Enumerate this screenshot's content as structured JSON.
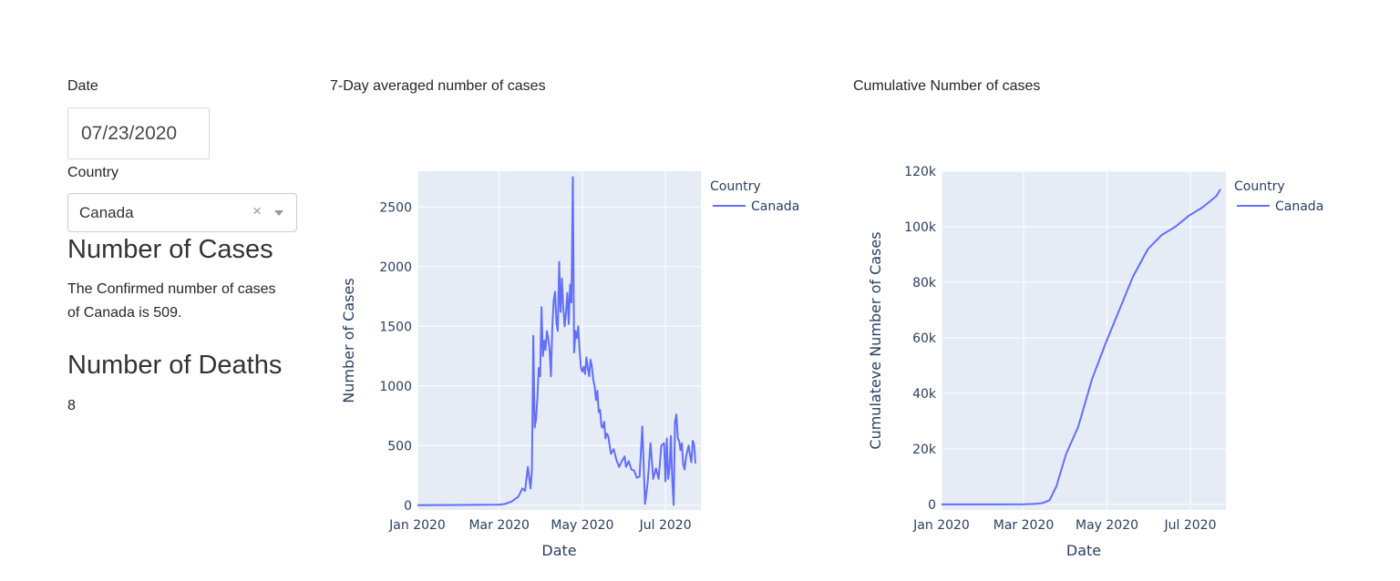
{
  "controls": {
    "date_label": "Date",
    "date_value": "07/23/2020",
    "country_label": "Country",
    "country_value": "Canada",
    "clear_glyph": "×"
  },
  "summary": {
    "cases_heading": "Number of Cases",
    "cases_text_line1": "The Confirmed number of cases",
    "cases_text_line2": "of Canada is 509.",
    "deaths_heading": "Number of Deaths",
    "deaths_value": "8"
  },
  "chart_titles": {
    "daily": "7-Day averaged number of cases",
    "cumulative": "Cumulative Number of cases"
  },
  "colors": {
    "line": "#636efa",
    "plot_bg": "#e5ecf6",
    "grid": "#ffffff",
    "text": "#2a3f5f"
  },
  "chart_data": [
    {
      "id": "daily",
      "type": "line",
      "xlabel": "Date",
      "ylabel": "Number of Cases",
      "x_tick_labels": [
        "Jan 2020",
        "Mar 2020",
        "May 2020",
        "Jul 2020"
      ],
      "y_tick_labels": [
        "0",
        "500",
        "1000",
        "1500",
        "2000",
        "2500"
      ],
      "ylim": [
        -40,
        2800
      ],
      "x_range": [
        "2020-01-01",
        "2020-07-27"
      ],
      "legend_title": "Country",
      "legend_position": "top-right",
      "series": [
        {
          "name": "Canada",
          "x": [
            "2020-01-01",
            "2020-02-01",
            "2020-03-01",
            "2020-03-05",
            "2020-03-10",
            "2020-03-15",
            "2020-03-18",
            "2020-03-20",
            "2020-03-22",
            "2020-03-24",
            "2020-03-25",
            "2020-03-26",
            "2020-03-27",
            "2020-03-28",
            "2020-03-29",
            "2020-03-30",
            "2020-03-31",
            "2020-04-01",
            "2020-04-02",
            "2020-04-03",
            "2020-04-04",
            "2020-04-05",
            "2020-04-06",
            "2020-04-07",
            "2020-04-08",
            "2020-04-09",
            "2020-04-10",
            "2020-04-11",
            "2020-04-12",
            "2020-04-13",
            "2020-04-14",
            "2020-04-15",
            "2020-04-16",
            "2020-04-17",
            "2020-04-18",
            "2020-04-19",
            "2020-04-20",
            "2020-04-21",
            "2020-04-22",
            "2020-04-23",
            "2020-04-24",
            "2020-04-25",
            "2020-04-26",
            "2020-04-27",
            "2020-04-28",
            "2020-04-29",
            "2020-04-30",
            "2020-05-01",
            "2020-05-02",
            "2020-05-03",
            "2020-05-04",
            "2020-05-05",
            "2020-05-06",
            "2020-05-07",
            "2020-05-08",
            "2020-05-09",
            "2020-05-10",
            "2020-05-11",
            "2020-05-12",
            "2020-05-13",
            "2020-05-14",
            "2020-05-15",
            "2020-05-16",
            "2020-05-17",
            "2020-05-18",
            "2020-05-19",
            "2020-05-20",
            "2020-05-22",
            "2020-05-24",
            "2020-05-26",
            "2020-05-28",
            "2020-05-30",
            "2020-06-01",
            "2020-06-02",
            "2020-06-04",
            "2020-06-06",
            "2020-06-08",
            "2020-06-10",
            "2020-06-12",
            "2020-06-14",
            "2020-06-16",
            "2020-06-18",
            "2020-06-20",
            "2020-06-22",
            "2020-06-24",
            "2020-06-26",
            "2020-06-28",
            "2020-06-30",
            "2020-07-01",
            "2020-07-02",
            "2020-07-03",
            "2020-07-04",
            "2020-07-05",
            "2020-07-06",
            "2020-07-07",
            "2020-07-08",
            "2020-07-09",
            "2020-07-10",
            "2020-07-11",
            "2020-07-12",
            "2020-07-13",
            "2020-07-14",
            "2020-07-15",
            "2020-07-16",
            "2020-07-17",
            "2020-07-18",
            "2020-07-19",
            "2020-07-20",
            "2020-07-21",
            "2020-07-22",
            "2020-07-23"
          ],
          "y": [
            0,
            2,
            5,
            10,
            30,
            70,
            140,
            120,
            320,
            140,
            300,
            1420,
            650,
            720,
            900,
            1150,
            1080,
            1660,
            1250,
            1380,
            1300,
            1460,
            1400,
            1300,
            1080,
            1500,
            1720,
            1790,
            1530,
            1460,
            2040,
            1620,
            1900,
            1650,
            1500,
            1620,
            1780,
            1520,
            1850,
            1700,
            2750,
            1280,
            1460,
            1400,
            1500,
            1300,
            1150,
            1120,
            1160,
            1100,
            1240,
            1150,
            1080,
            1220,
            1160,
            1050,
            1000,
            880,
            960,
            780,
            800,
            660,
            650,
            700,
            560,
            600,
            580,
            430,
            470,
            380,
            320,
            370,
            410,
            320,
            370,
            300,
            290,
            230,
            240,
            660,
            10,
            200,
            520,
            220,
            310,
            220,
            500,
            520,
            200,
            560,
            220,
            310,
            580,
            200,
            2,
            700,
            760,
            560,
            540,
            460,
            520,
            340,
            300,
            400,
            450,
            500,
            420,
            360,
            540,
            509,
            350
          ]
        }
      ]
    },
    {
      "id": "cumulative",
      "type": "line",
      "xlabel": "Date",
      "ylabel": "Cumulateve Number of Cases",
      "x_tick_labels": [
        "Jan 2020",
        "Mar 2020",
        "May 2020",
        "Jul 2020"
      ],
      "y_tick_labels": [
        "0",
        "20k",
        "40k",
        "60k",
        "80k",
        "100k",
        "120k"
      ],
      "ylim": [
        -2000,
        120000
      ],
      "x_range": [
        "2020-01-01",
        "2020-07-27"
      ],
      "legend_title": "Country",
      "legend_position": "top-right",
      "series": [
        {
          "name": "Canada",
          "x": [
            "2020-01-01",
            "2020-02-01",
            "2020-03-01",
            "2020-03-10",
            "2020-03-15",
            "2020-03-20",
            "2020-03-25",
            "2020-04-01",
            "2020-04-10",
            "2020-04-20",
            "2020-04-30",
            "2020-05-10",
            "2020-05-20",
            "2020-05-31",
            "2020-06-10",
            "2020-06-20",
            "2020-06-30",
            "2020-07-10",
            "2020-07-20",
            "2020-07-23"
          ],
          "y": [
            0,
            10,
            50,
            200,
            500,
            1500,
            6500,
            18000,
            28000,
            45000,
            58000,
            70000,
            82000,
            92000,
            97000,
            100000,
            104000,
            107000,
            111000,
            113500
          ]
        }
      ]
    }
  ]
}
